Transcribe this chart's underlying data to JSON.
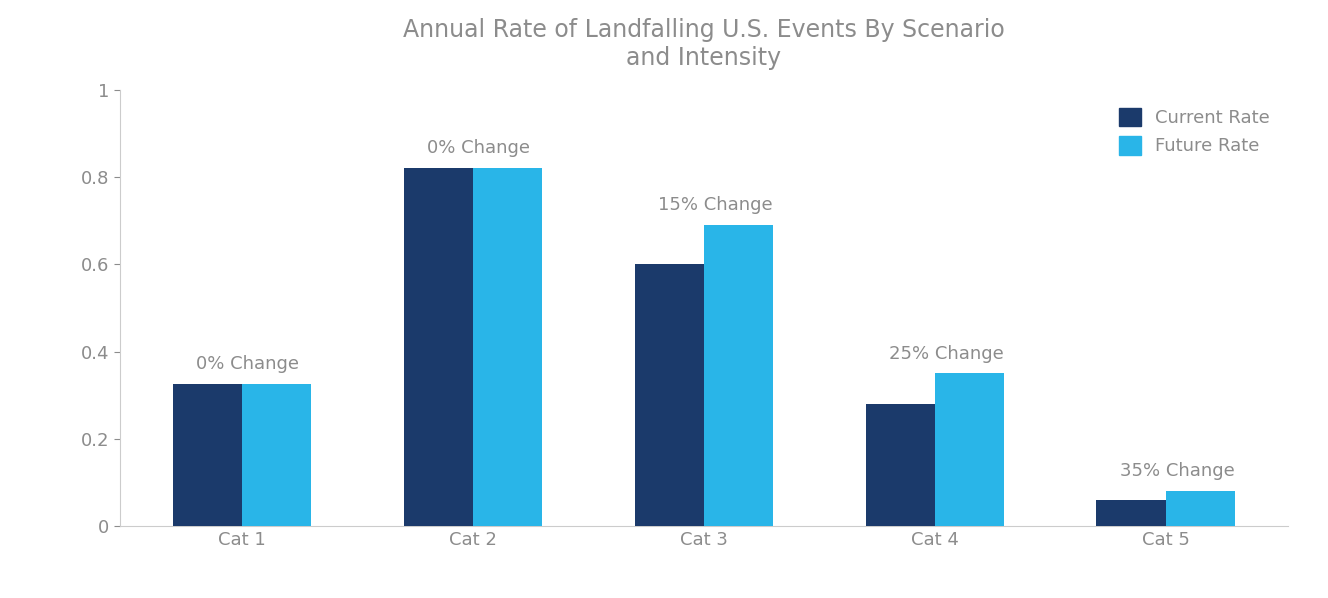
{
  "title": "Annual Rate of Landfalling U.S. Events By Scenario\nand Intensity",
  "categories": [
    "Cat 1",
    "Cat 2",
    "Cat 3",
    "Cat 4",
    "Cat 5"
  ],
  "current_rate": [
    0.325,
    0.82,
    0.6,
    0.28,
    0.06
  ],
  "future_rate": [
    0.325,
    0.82,
    0.69,
    0.35,
    0.081
  ],
  "change_labels": [
    "0% Change",
    "0% Change",
    "15% Change",
    "25% Change",
    "35% Change"
  ],
  "color_current": "#1B3A6B",
  "color_future": "#29B5E8",
  "ylim": [
    0,
    1.0
  ],
  "yticks": [
    0,
    0.2,
    0.4,
    0.6,
    0.8,
    1
  ],
  "ytick_labels": [
    "0",
    "0.2",
    "0.4",
    "0.6",
    "0.8",
    "1"
  ],
  "legend_current": "Current Rate",
  "legend_future": "Future Rate",
  "bar_width": 0.3,
  "title_color": "#8C8C8C",
  "label_color": "#8C8C8C",
  "tick_color": "#8C8C8C",
  "annotation_fontsize": 13,
  "title_fontsize": 17,
  "tick_fontsize": 13,
  "legend_fontsize": 13,
  "background_color": "#FFFFFF",
  "spine_color": "#CCCCCC"
}
